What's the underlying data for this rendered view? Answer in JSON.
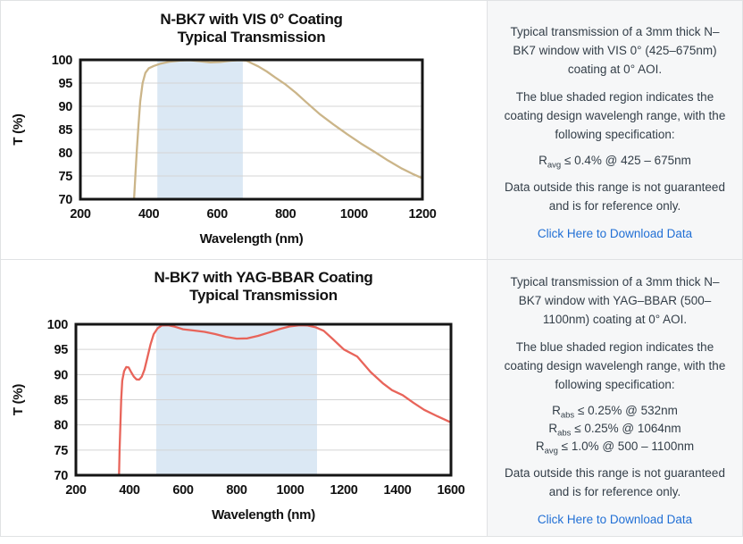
{
  "colors": {
    "vis_line": "#cbb589",
    "yag_line": "#e8645a",
    "band_fill": "#dbe8f4",
    "link_blue": "#2270d5",
    "info_panel_bg": "#f6f7f8",
    "info_text": "#333e48",
    "grid_border": "#e0e2e4",
    "chart_frame": "#151515",
    "gridline": "#d4d4d4"
  },
  "info_panels": [
    {
      "p1": "Typical transmission of a 3mm thick N–BK7 window with VIS 0° (425–675nm) coating at 0° AOI.",
      "p2": "The blue shaded region indicates the coating design wavelengh range, with the following specification:",
      "specs": [
        {
          "pre": "R",
          "sub": "avg",
          "post": " ≤ 0.4% @ 425 – 675nm"
        }
      ],
      "p3": "Data outside this range is not guaranteed and is for reference only.",
      "link": "Click Here to Download Data"
    },
    {
      "p1": "Typical transmission of a 3mm thick N–BK7 window with YAG–BBAR (500–1100nm) coating at 0° AOI.",
      "p2": "The blue shaded region indicates the coating design wavelengh range, with the following specification:",
      "specs": [
        {
          "pre": "R",
          "sub": "abs",
          "post": " ≤ 0.25% @ 532nm"
        },
        {
          "pre": "R",
          "sub": "abs",
          "post": " ≤ 0.25% @ 1064nm"
        },
        {
          "pre": "R",
          "sub": "avg",
          "post": " ≤ 1.0% @ 500 – 1100nm"
        }
      ],
      "p3": "Data outside this range is not guaranteed and is for reference only.",
      "link": "Click Here to Download Data"
    }
  ],
  "chart_data": [
    {
      "type": "line",
      "title_lines": [
        "N-BK7 with VIS 0° Coating",
        "Typical Transmission"
      ],
      "xlabel": "Wavelength (nm)",
      "ylabel": "T (%)",
      "xlim": [
        200,
        1200
      ],
      "ylim": [
        70,
        100
      ],
      "xticks": [
        200,
        400,
        600,
        800,
        1000,
        1200
      ],
      "yticks": [
        70,
        75,
        80,
        85,
        90,
        95,
        100
      ],
      "grid": "horizontal",
      "legend": "none",
      "design_band_nm": [
        425,
        675
      ],
      "band_color": "#dbe8f4",
      "line_color": "#cbb589",
      "series": [
        {
          "name": "N-BK7 window, 3mm thick, VIS 0° coating, 0° AOI",
          "x": [
            357,
            361,
            365,
            370,
            375,
            382,
            390,
            400,
            415,
            435,
            460,
            490,
            520,
            550,
            580,
            610,
            640,
            665,
            685,
            700,
            720,
            745,
            770,
            800,
            830,
            860,
            900,
            940,
            980,
            1020,
            1060,
            1100,
            1140,
            1170,
            1200
          ],
          "y": [
            70,
            75.5,
            80.5,
            86,
            91,
            95,
            97.2,
            98.2,
            98.7,
            99.2,
            99.6,
            99.85,
            99.9,
            99.7,
            99.45,
            99.55,
            99.8,
            99.9,
            99.85,
            99.3,
            98.6,
            97.5,
            96.2,
            94.7,
            92.9,
            90.9,
            88.3,
            86.1,
            84,
            82,
            80.2,
            78.3,
            76.6,
            75.5,
            74.5
          ]
        }
      ]
    },
    {
      "type": "line",
      "title_lines": [
        "N-BK7 with YAG-BBAR Coating",
        "Typical Transmission"
      ],
      "xlabel": "Wavelength (nm)",
      "ylabel": "T (%)",
      "xlim": [
        200,
        1600
      ],
      "ylim": [
        70,
        100
      ],
      "xticks": [
        200,
        400,
        600,
        800,
        1000,
        1200,
        1400,
        1600
      ],
      "yticks": [
        70,
        75,
        80,
        85,
        90,
        95,
        100
      ],
      "grid": "horizontal",
      "legend": "none",
      "design_band_nm": [
        500,
        1100
      ],
      "band_color": "#dbe8f4",
      "line_color": "#e8645a",
      "series": [
        {
          "name": "N-BK7 window, 3mm thick, YAG-BBAR coating, 0° AOI",
          "x": [
            361,
            363,
            366,
            369,
            373,
            380,
            388,
            397,
            406,
            416,
            426,
            436,
            446,
            456,
            466,
            478,
            490,
            505,
            520,
            545,
            570,
            600,
            640,
            680,
            720,
            760,
            800,
            840,
            880,
            920,
            960,
            1000,
            1035,
            1065,
            1095,
            1125,
            1160,
            1200,
            1250,
            1300,
            1345,
            1380,
            1420,
            1460,
            1500,
            1550,
            1600
          ],
          "y": [
            70,
            75,
            80,
            85,
            88.8,
            90.7,
            91.5,
            91.4,
            90.5,
            89.6,
            89.05,
            89.0,
            89.6,
            91.0,
            93.2,
            95.9,
            98.0,
            99.2,
            99.75,
            99.8,
            99.5,
            99.0,
            98.75,
            98.5,
            98.05,
            97.5,
            97.15,
            97.2,
            97.7,
            98.35,
            99.05,
            99.6,
            99.8,
            99.75,
            99.4,
            98.7,
            97.0,
            95.0,
            93.6,
            90.5,
            88.3,
            86.9,
            85.9,
            84.4,
            83.0,
            81.7,
            80.5
          ]
        }
      ]
    }
  ]
}
